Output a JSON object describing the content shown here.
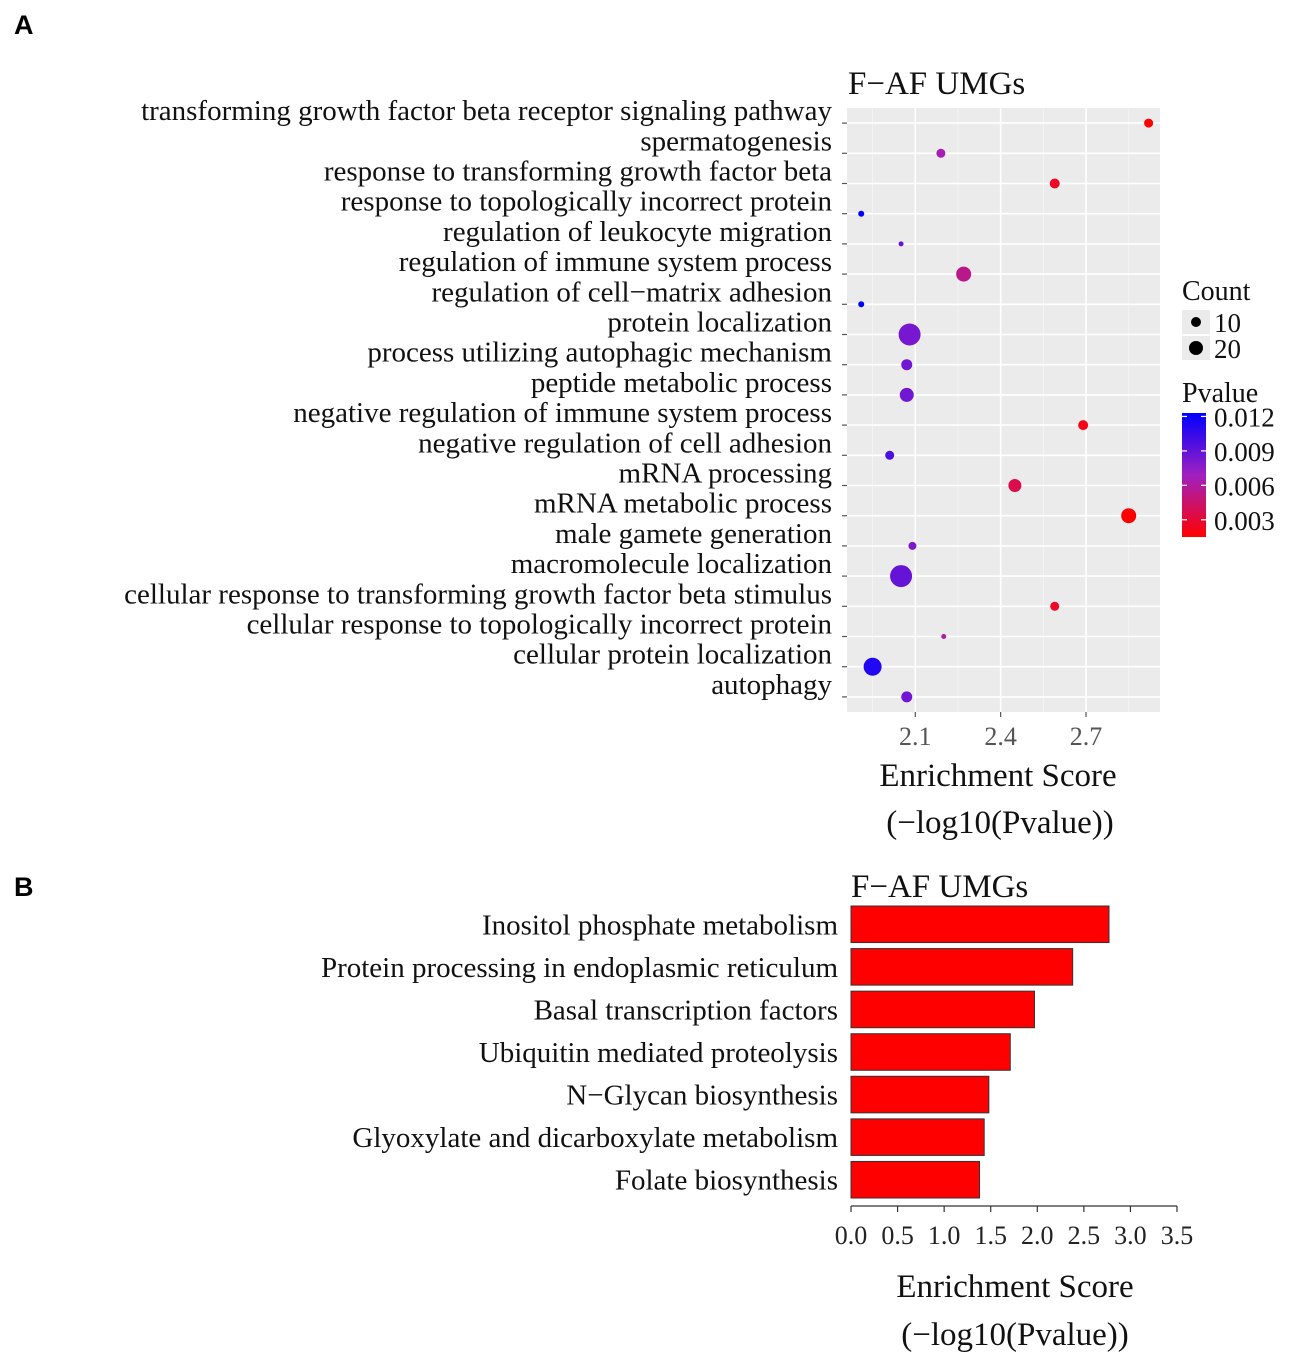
{
  "panel_labels": [
    "A",
    "B"
  ],
  "chart_data": [
    {
      "type": "scatter",
      "subtype": "bubble",
      "panel": "A",
      "title": "F−AF UMGs",
      "xlabel_line1": "Enrichment Score",
      "xlabel_line2": "(−log10(Pvalue))",
      "xticks": [
        2.1,
        2.4,
        2.7
      ],
      "xtick_labels": [
        "2.1",
        "2.4",
        "2.7"
      ],
      "xlim": [
        1.86,
        2.96
      ],
      "grid": true,
      "legend_position": "right",
      "size_legend": {
        "title": "Count",
        "entries": [
          {
            "label": "10",
            "value": 10
          },
          {
            "label": "20",
            "value": 20
          }
        ]
      },
      "color_legend": {
        "title": "Pvalue",
        "low_color": "#ff0000",
        "high_color": "#0000ff",
        "labels": [
          "0.012",
          "0.009",
          "0.006",
          "0.003"
        ],
        "values": [
          0.012,
          0.009,
          0.006,
          0.003
        ],
        "range": [
          0.0015,
          0.0123
        ]
      },
      "terms": [
        {
          "term": "transforming growth factor beta receptor signaling pathway",
          "score": 2.92,
          "count": 9,
          "pvalue": 0.0012
        },
        {
          "term": "spermatogenesis",
          "score": 2.19,
          "count": 9,
          "pvalue": 0.0065
        },
        {
          "term": "response to transforming growth factor beta",
          "score": 2.59,
          "count": 10,
          "pvalue": 0.0026
        },
        {
          "term": "response to topologically incorrect protein",
          "score": 1.91,
          "count": 6,
          "pvalue": 0.0123
        },
        {
          "term": "regulation of leukocyte migration",
          "score": 2.05,
          "count": 5,
          "pvalue": 0.0089
        },
        {
          "term": "regulation of immune system process",
          "score": 2.27,
          "count": 15,
          "pvalue": 0.0054
        },
        {
          "term": "regulation of cell−matrix adhesion",
          "score": 1.91,
          "count": 6,
          "pvalue": 0.0123
        },
        {
          "term": "protein localization",
          "score": 2.08,
          "count": 22,
          "pvalue": 0.0083
        },
        {
          "term": "process utilizing autophagic mechanism",
          "score": 2.07,
          "count": 11,
          "pvalue": 0.0085
        },
        {
          "term": "peptide metabolic process",
          "score": 2.07,
          "count": 14,
          "pvalue": 0.0085
        },
        {
          "term": "negative regulation of immune system process",
          "score": 2.69,
          "count": 10,
          "pvalue": 0.0021
        },
        {
          "term": "negative regulation of cell adhesion",
          "score": 2.01,
          "count": 9,
          "pvalue": 0.0098
        },
        {
          "term": "mRNA processing",
          "score": 2.45,
          "count": 13,
          "pvalue": 0.0036
        },
        {
          "term": "mRNA metabolic process",
          "score": 2.85,
          "count": 15,
          "pvalue": 0.0014
        },
        {
          "term": "male gamete generation",
          "score": 2.09,
          "count": 8,
          "pvalue": 0.0081
        },
        {
          "term": "macromolecule localization",
          "score": 2.05,
          "count": 22,
          "pvalue": 0.0089
        },
        {
          "term": "cellular response to transforming growth factor beta stimulus",
          "score": 2.59,
          "count": 9,
          "pvalue": 0.0026
        },
        {
          "term": "cellular response to topologically incorrect protein",
          "score": 2.2,
          "count": 5,
          "pvalue": 0.0063
        },
        {
          "term": "cellular protein localization",
          "score": 1.95,
          "count": 18,
          "pvalue": 0.0112
        },
        {
          "term": "autophagy",
          "score": 2.07,
          "count": 11,
          "pvalue": 0.0085
        }
      ]
    },
    {
      "type": "bar",
      "orientation": "horizontal",
      "panel": "B",
      "title": "F−AF UMGs",
      "xlabel_line1": "Enrichment Score",
      "xlabel_line2": "(−log10(Pvalue))",
      "xlim": [
        0,
        3.5
      ],
      "xticks": [
        0.0,
        0.5,
        1.0,
        1.5,
        2.0,
        2.5,
        3.0,
        3.5
      ],
      "xtick_labels": [
        "0.0",
        "0.5",
        "1.0",
        "1.5",
        "2.0",
        "2.5",
        "3.0",
        "3.5"
      ],
      "bar_color": "#ff0000",
      "categories": [
        "Inositol phosphate metabolism",
        "Protein processing in endoplasmic reticulum",
        "Basal transcription factors",
        "Ubiquitin mediated proteolysis",
        "N−Glycan biosynthesis",
        "Glyoxylate and dicarboxylate metabolism",
        "Folate biosynthesis"
      ],
      "values": [
        2.77,
        2.38,
        1.97,
        1.71,
        1.48,
        1.43,
        1.38
      ]
    }
  ]
}
